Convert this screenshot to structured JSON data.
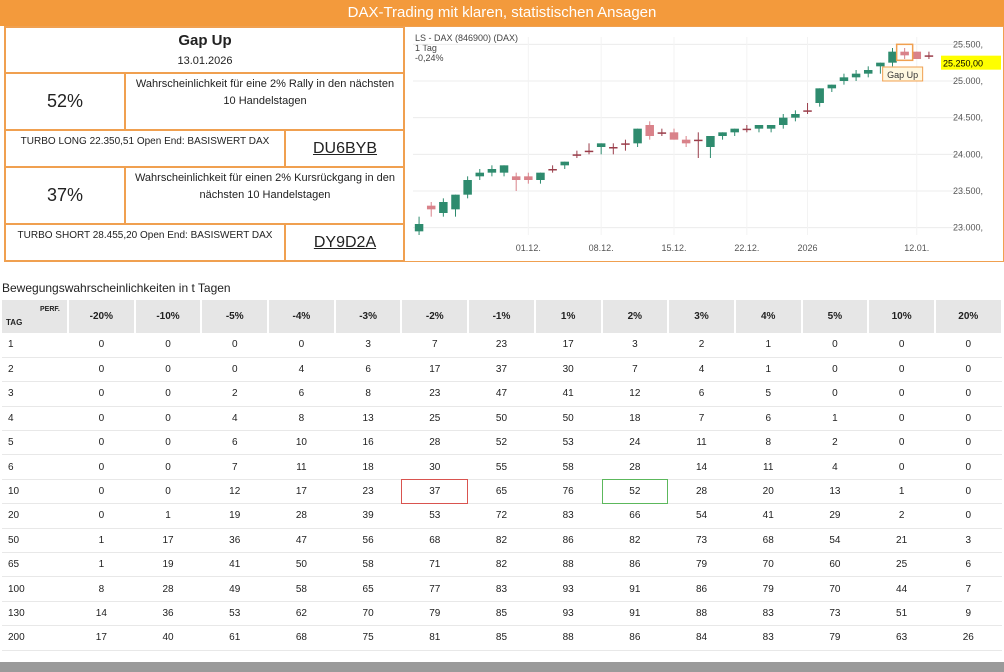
{
  "banner": {
    "title": "DAX-Trading mit klaren, statistischen Ansagen"
  },
  "info": {
    "title": "Gap Up",
    "date": "13.01.2026",
    "rally_pct": "52%",
    "rally_text": "Wahrscheinlichkeit für eine 2% Rally in den nächsten 10 Handelstagen",
    "long_text": "TURBO LONG 22.350,51 Open End: BASISWERT DAX",
    "long_code": "DU6BYB",
    "drop_pct": "37%",
    "drop_text": "Wahrscheinlichkeit für einen 2% Kursrückgang in den nächsten 10 Handelstagen",
    "short_text": "TURBO SHORT 28.455,20 Open End: BASISWERT DAX",
    "short_code": "DY9D2A"
  },
  "chart": {
    "legend_line1": "LS - DAX (846900) (DAX)",
    "legend_line2": "1 Tag",
    "legend_line3": "-0,24%",
    "price_label": "25.250,00",
    "gap_label": "Gap Up",
    "colors": {
      "up": "#2e8b6e",
      "down": "#d9828a",
      "neutral": "#9a3d4a",
      "marker": "#f0a050",
      "price_bg": "#ffff00"
    }
  },
  "chart_data": {
    "type": "candlestick",
    "y_ticks": [
      "25.500,",
      "25.000,",
      "24.500,",
      "24.000,",
      "23.500,",
      "23.000,"
    ],
    "y_tick_values": [
      25500,
      25000,
      24500,
      24000,
      23500,
      23000
    ],
    "x_ticks": [
      "01.12.",
      "08.12.",
      "15.12.",
      "22.12.",
      "2026",
      "12.01."
    ],
    "x_tick_index": [
      9,
      15,
      21,
      27,
      32,
      41
    ],
    "ylim": [
      22900,
      25600
    ],
    "candles": [
      {
        "o": 22950,
        "h": 23150,
        "l": 22900,
        "c": 23050
      },
      {
        "o": 23300,
        "h": 23350,
        "l": 23150,
        "c": 23250
      },
      {
        "o": 23200,
        "h": 23400,
        "l": 23150,
        "c": 23350
      },
      {
        "o": 23250,
        "h": 23450,
        "l": 23150,
        "c": 23450
      },
      {
        "o": 23450,
        "h": 23700,
        "l": 23400,
        "c": 23650
      },
      {
        "o": 23700,
        "h": 23800,
        "l": 23650,
        "c": 23750
      },
      {
        "o": 23750,
        "h": 23850,
        "l": 23700,
        "c": 23800
      },
      {
        "o": 23750,
        "h": 23850,
        "l": 23700,
        "c": 23850
      },
      {
        "o": 23700,
        "h": 23750,
        "l": 23500,
        "c": 23650
      },
      {
        "o": 23700,
        "h": 23750,
        "l": 23600,
        "c": 23650
      },
      {
        "o": 23650,
        "h": 23750,
        "l": 23600,
        "c": 23750
      },
      {
        "o": 23800,
        "h": 23850,
        "l": 23750,
        "c": 23800
      },
      {
        "o": 23850,
        "h": 23900,
        "l": 23800,
        "c": 23900
      },
      {
        "o": 24000,
        "h": 24050,
        "l": 23950,
        "c": 24000
      },
      {
        "o": 24050,
        "h": 24150,
        "l": 24000,
        "c": 24050
      },
      {
        "o": 24100,
        "h": 24150,
        "l": 24000,
        "c": 24150
      },
      {
        "o": 24100,
        "h": 24150,
        "l": 24000,
        "c": 24100
      },
      {
        "o": 24150,
        "h": 24200,
        "l": 24050,
        "c": 24150
      },
      {
        "o": 24150,
        "h": 24350,
        "l": 24100,
        "c": 24350
      },
      {
        "o": 24400,
        "h": 24450,
        "l": 24200,
        "c": 24250
      },
      {
        "o": 24300,
        "h": 24350,
        "l": 24250,
        "c": 24300
      },
      {
        "o": 24300,
        "h": 24350,
        "l": 24200,
        "c": 24200
      },
      {
        "o": 24200,
        "h": 24250,
        "l": 24100,
        "c": 24150
      },
      {
        "o": 24200,
        "h": 24300,
        "l": 23950,
        "c": 24200
      },
      {
        "o": 24100,
        "h": 24250,
        "l": 23950,
        "c": 24250
      },
      {
        "o": 24250,
        "h": 24300,
        "l": 24200,
        "c": 24300
      },
      {
        "o": 24300,
        "h": 24350,
        "l": 24250,
        "c": 24350
      },
      {
        "o": 24350,
        "h": 24400,
        "l": 24300,
        "c": 24350
      },
      {
        "o": 24350,
        "h": 24400,
        "l": 24300,
        "c": 24400
      },
      {
        "o": 24350,
        "h": 24400,
        "l": 24300,
        "c": 24400
      },
      {
        "o": 24400,
        "h": 24550,
        "l": 24350,
        "c": 24500
      },
      {
        "o": 24500,
        "h": 24600,
        "l": 24450,
        "c": 24550
      },
      {
        "o": 24600,
        "h": 24700,
        "l": 24550,
        "c": 24600
      },
      {
        "o": 24700,
        "h": 24900,
        "l": 24650,
        "c": 24900
      },
      {
        "o": 24900,
        "h": 24950,
        "l": 24850,
        "c": 24950
      },
      {
        "o": 25000,
        "h": 25100,
        "l": 24950,
        "c": 25050
      },
      {
        "o": 25050,
        "h": 25150,
        "l": 25000,
        "c": 25100
      },
      {
        "o": 25100,
        "h": 25200,
        "l": 25050,
        "c": 25150
      },
      {
        "o": 25200,
        "h": 25250,
        "l": 25100,
        "c": 25250
      },
      {
        "o": 25250,
        "h": 25450,
        "l": 25200,
        "c": 25400
      },
      {
        "o": 25400,
        "h": 25450,
        "l": 25300,
        "c": 25350
      },
      {
        "o": 25400,
        "h": 25400,
        "l": 25300,
        "c": 25300
      },
      {
        "o": 25350,
        "h": 25400,
        "l": 25300,
        "c": 25350
      }
    ]
  },
  "table": {
    "section_title": "Bewegungswahrscheinlichkeiten in t Tagen",
    "tag_label": "TAG",
    "perf_label": "PERF.",
    "headers": [
      "-20%",
      "-10%",
      "-5%",
      "-4%",
      "-3%",
      "-2%",
      "-1%",
      "1%",
      "2%",
      "3%",
      "4%",
      "5%",
      "10%",
      "20%"
    ],
    "rows": [
      {
        "tag": "1",
        "v": [
          "0",
          "0",
          "0",
          "0",
          "3",
          "7",
          "23",
          "17",
          "3",
          "2",
          "1",
          "0",
          "0",
          "0"
        ]
      },
      {
        "tag": "2",
        "v": [
          "0",
          "0",
          "0",
          "4",
          "6",
          "17",
          "37",
          "30",
          "7",
          "4",
          "1",
          "0",
          "0",
          "0"
        ]
      },
      {
        "tag": "3",
        "v": [
          "0",
          "0",
          "2",
          "6",
          "8",
          "23",
          "47",
          "41",
          "12",
          "6",
          "5",
          "0",
          "0",
          "0"
        ]
      },
      {
        "tag": "4",
        "v": [
          "0",
          "0",
          "4",
          "8",
          "13",
          "25",
          "50",
          "50",
          "18",
          "7",
          "6",
          "1",
          "0",
          "0"
        ]
      },
      {
        "tag": "5",
        "v": [
          "0",
          "0",
          "6",
          "10",
          "16",
          "28",
          "52",
          "53",
          "24",
          "11",
          "8",
          "2",
          "0",
          "0"
        ]
      },
      {
        "tag": "6",
        "v": [
          "0",
          "0",
          "7",
          "11",
          "18",
          "30",
          "55",
          "58",
          "28",
          "14",
          "11",
          "4",
          "0",
          "0"
        ]
      },
      {
        "tag": "10",
        "v": [
          "0",
          "0",
          "12",
          "17",
          "23",
          "37",
          "65",
          "76",
          "52",
          "28",
          "20",
          "13",
          "1",
          "0"
        ]
      },
      {
        "tag": "20",
        "v": [
          "0",
          "1",
          "19",
          "28",
          "39",
          "53",
          "72",
          "83",
          "66",
          "54",
          "41",
          "29",
          "2",
          "0"
        ]
      },
      {
        "tag": "50",
        "v": [
          "1",
          "17",
          "36",
          "47",
          "56",
          "68",
          "82",
          "86",
          "82",
          "73",
          "68",
          "54",
          "21",
          "3"
        ]
      },
      {
        "tag": "65",
        "v": [
          "1",
          "19",
          "41",
          "50",
          "58",
          "71",
          "82",
          "88",
          "86",
          "79",
          "70",
          "60",
          "25",
          "6"
        ]
      },
      {
        "tag": "100",
        "v": [
          "8",
          "28",
          "49",
          "58",
          "65",
          "77",
          "83",
          "93",
          "91",
          "86",
          "79",
          "70",
          "44",
          "7"
        ]
      },
      {
        "tag": "130",
        "v": [
          "14",
          "36",
          "53",
          "62",
          "70",
          "79",
          "85",
          "93",
          "91",
          "88",
          "83",
          "73",
          "51",
          "9"
        ]
      },
      {
        "tag": "200",
        "v": [
          "17",
          "40",
          "61",
          "68",
          "75",
          "81",
          "85",
          "88",
          "86",
          "84",
          "83",
          "79",
          "63",
          "26"
        ]
      }
    ],
    "highlight": {
      "red": {
        "row": 6,
        "col": 5
      },
      "green": {
        "row": 6,
        "col": 8
      }
    }
  }
}
